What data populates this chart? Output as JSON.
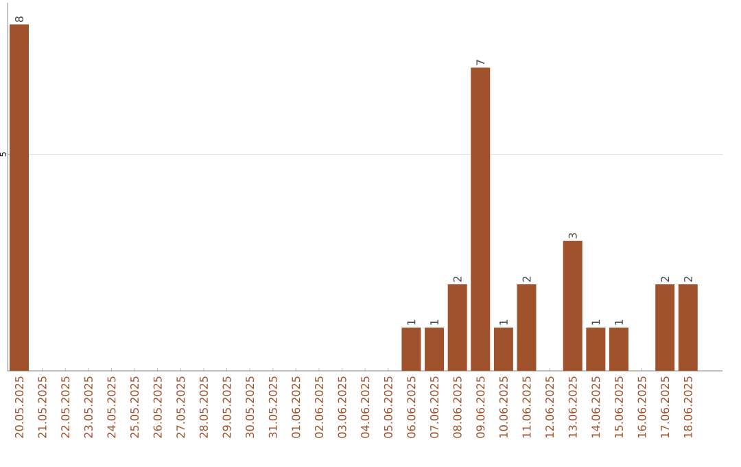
{
  "chart_data": {
    "type": "bar",
    "categories": [
      "20.05.2025",
      "21.05.2025",
      "22.05.2025",
      "23.05.2025",
      "24.05.2025",
      "25.05.2025",
      "26.05.2025",
      "27.05.2025",
      "28.05.2025",
      "29.05.2025",
      "30.05.2025",
      "31.05.2025",
      "01.06.2025",
      "02.06.2025",
      "03.06.2025",
      "04.06.2025",
      "05.06.2025",
      "06.06.2025",
      "07.06.2025",
      "08.06.2025",
      "09.06.2025",
      "10.06.2025",
      "11.06.2025",
      "12.06.2025",
      "13.06.2025",
      "14.06.2025",
      "15.06.2025",
      "16.06.2025",
      "17.06.2025",
      "18.06.2025"
    ],
    "values": [
      8,
      0,
      0,
      0,
      0,
      0,
      0,
      0,
      0,
      0,
      0,
      0,
      0,
      0,
      0,
      0,
      0,
      1,
      1,
      2,
      7,
      1,
      2,
      0,
      3,
      1,
      1,
      0,
      2,
      2
    ],
    "value_labels": [
      "8",
      null,
      null,
      null,
      null,
      null,
      null,
      null,
      null,
      null,
      null,
      null,
      null,
      null,
      null,
      null,
      null,
      "1",
      "1",
      "2",
      "7",
      "1",
      "2",
      null,
      "3",
      "1",
      "1",
      null,
      "2",
      "2"
    ],
    "color": "#a0522d",
    "ylim": [
      0,
      8.5
    ],
    "yticks": [
      5
    ],
    "grid": "y"
  }
}
